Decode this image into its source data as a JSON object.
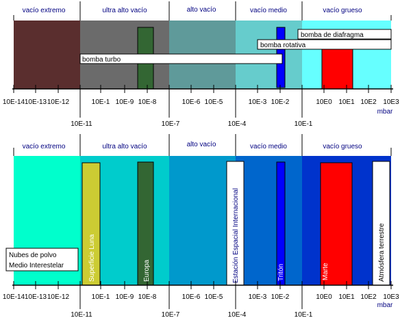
{
  "colors": {
    "navy_text": "#000080",
    "axis": "#000000",
    "top_regions": [
      "#5a2e2e",
      "#6b6b6b",
      "#5f9a9a",
      "#66cccc",
      "#66ffff"
    ],
    "bottom_regions": [
      "#00ffcc",
      "#00cccc",
      "#0099cc",
      "#0066cc",
      "#0033cc"
    ],
    "green": "#336633",
    "blue": "#0000ff",
    "red": "#ff0000",
    "olive": "#cccc33",
    "white": "#ffffff"
  },
  "regions": [
    "vacío extremo",
    "ultra alto vacío",
    "alto vacío",
    "vacío medio",
    "vacío grueso"
  ],
  "tick_labels": [
    "10E-14",
    "10E-13",
    "10E-12",
    "10E-1",
    "10E-9",
    "10E-8",
    "10E-6",
    "10E-5",
    "10E-3",
    "10E-2",
    "10E0",
    "10E1",
    "10E2",
    "10E3"
  ],
  "boundary_labels": [
    "10E-11",
    "10E-7",
    "10E-4",
    "10E-1"
  ],
  "unit": "mbar",
  "top_panel": {
    "pumps": {
      "diaphragm": "bomba de diafragma",
      "rotary": "bomba rotativa",
      "turbo": "bomba turbo"
    }
  },
  "bottom_panel": {
    "examples": {
      "dust": "Nubes de polvo",
      "medium": "Medio Interestelar",
      "moon": "Superficie Luna",
      "europa": "Europa",
      "iss": "Estación Espacial Internacional",
      "triton": "Tritón",
      "mars": "Marte",
      "earth": "Atmósfera terrestre"
    }
  }
}
